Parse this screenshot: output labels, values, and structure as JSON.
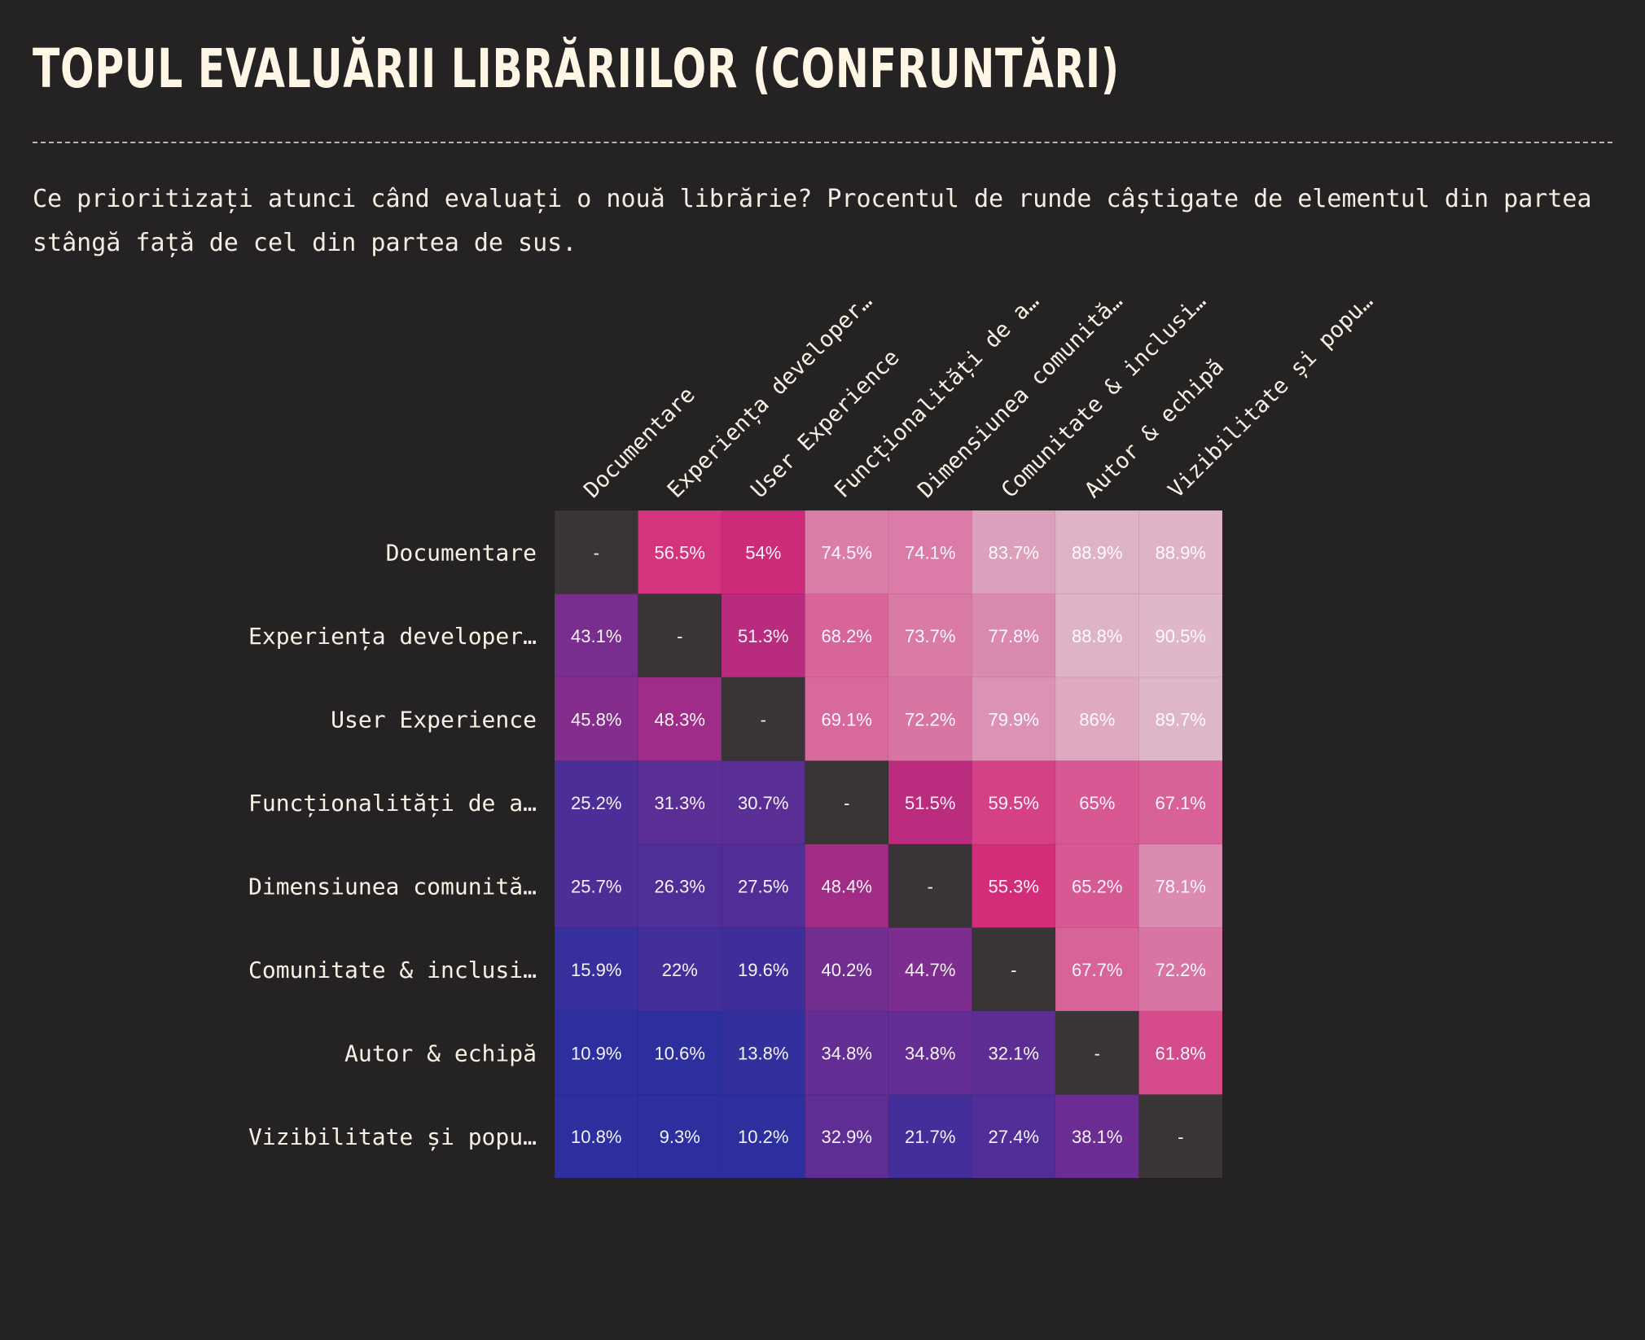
{
  "title": "TOPUL EVALUĂRII LIBRĂRIILOR (CONFRUNTĂRI)",
  "subtitle": "Ce prioritizați atunci când evaluați o nouă librărie? Procentul de runde câștigate de elementul din partea stângă față de cel din partea de sus.",
  "colors": {
    "background": "#252223",
    "text": "#f7f1e4",
    "diagonal": "#393536",
    "scale_low": "#2d2f9e",
    "scale_mid": "#d32b78",
    "scale_high": "#dfb7c9"
  },
  "chart_data": {
    "type": "heatmap",
    "title": "TOPUL EVALUĂRII LIBRĂRIILOR (CONFRUNTĂRI)",
    "row_labels": [
      "Documentare",
      "Experiența developer…",
      "User Experience",
      "Funcționalități de a…",
      "Dimensiunea comunită…",
      "Comunitate & inclusi…",
      "Autor & echipă",
      "Vizibilitate și popu…"
    ],
    "column_labels": [
      "Documentare",
      "Experiența developer…",
      "User Experience",
      "Funcționalități de a…",
      "Dimensiunea comunită…",
      "Comunitate & inclusi…",
      "Autor & echipă",
      "Vizibilitate și popu…"
    ],
    "values": [
      [
        null,
        56.5,
        54,
        74.5,
        74.1,
        83.7,
        88.9,
        88.9
      ],
      [
        43.1,
        null,
        51.3,
        68.2,
        73.7,
        77.8,
        88.8,
        90.5
      ],
      [
        45.8,
        48.3,
        null,
        69.1,
        72.2,
        79.9,
        86,
        89.7
      ],
      [
        25.2,
        31.3,
        30.7,
        null,
        51.5,
        59.5,
        65,
        67.1
      ],
      [
        25.7,
        26.3,
        27.5,
        48.4,
        null,
        55.3,
        65.2,
        78.1
      ],
      [
        15.9,
        22,
        19.6,
        40.2,
        44.7,
        null,
        67.7,
        72.2
      ],
      [
        10.9,
        10.6,
        13.8,
        34.8,
        34.8,
        32.1,
        null,
        61.8
      ],
      [
        10.8,
        9.3,
        10.2,
        32.9,
        21.7,
        27.4,
        38.1,
        null
      ]
    ],
    "cell_labels": [
      [
        "-",
        "56.5%",
        "54%",
        "74.5%",
        "74.1%",
        "83.7%",
        "88.9%",
        "88.9%"
      ],
      [
        "43.1%",
        "-",
        "51.3%",
        "68.2%",
        "73.7%",
        "77.8%",
        "88.8%",
        "90.5%"
      ],
      [
        "45.8%",
        "48.3%",
        "-",
        "69.1%",
        "72.2%",
        "79.9%",
        "86%",
        "89.7%"
      ],
      [
        "25.2%",
        "31.3%",
        "30.7%",
        "-",
        "51.5%",
        "59.5%",
        "65%",
        "67.1%"
      ],
      [
        "25.7%",
        "26.3%",
        "27.5%",
        "48.4%",
        "-",
        "55.3%",
        "65.2%",
        "78.1%"
      ],
      [
        "15.9%",
        "22%",
        "19.6%",
        "40.2%",
        "44.7%",
        "-",
        "67.7%",
        "72.2%"
      ],
      [
        "10.9%",
        "10.6%",
        "13.8%",
        "34.8%",
        "34.8%",
        "32.1%",
        "-",
        "61.8%"
      ],
      [
        "10.8%",
        "9.3%",
        "10.2%",
        "32.9%",
        "21.7%",
        "27.4%",
        "38.1%",
        "-"
      ]
    ],
    "diagonal_label": "-",
    "value_unit": "%",
    "value_range": [
      0,
      100
    ],
    "grid": false,
    "legend": "none"
  }
}
